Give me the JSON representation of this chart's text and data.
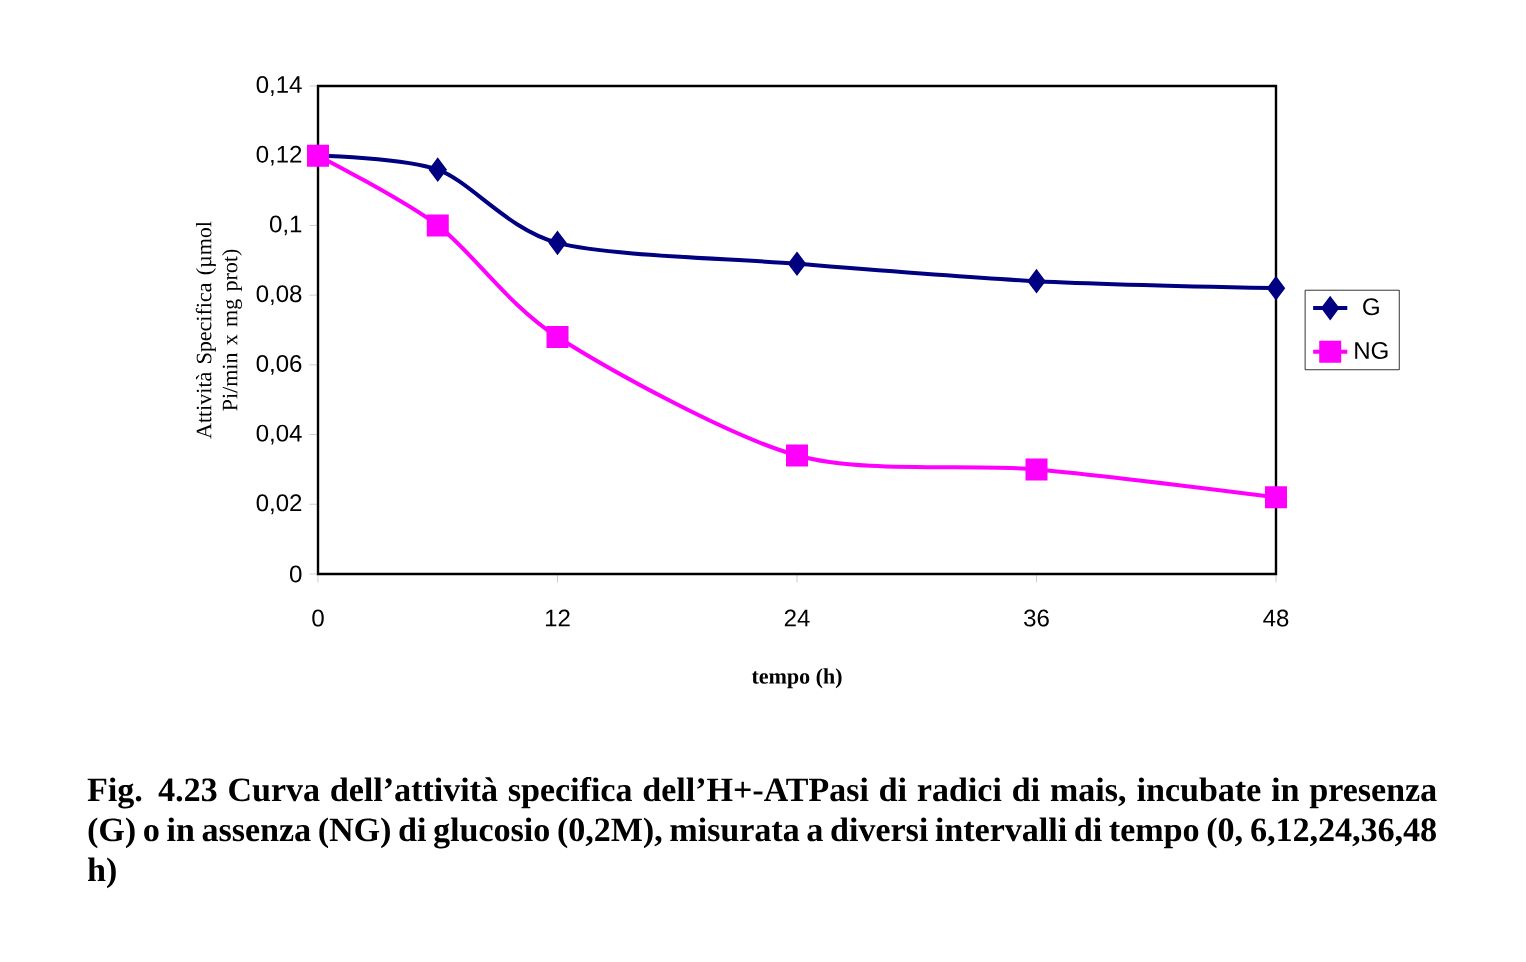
{
  "chart_data": {
    "type": "line",
    "xlabel": "tempo (h)",
    "ylabel": "Attività Specifica (µmol Pi/min x mg prot)",
    "x": [
      0,
      6,
      12,
      24,
      36,
      48
    ],
    "series": [
      {
        "name": "G",
        "color": "#000080",
        "marker": "diamond",
        "values": [
          0.12,
          0.116,
          0.095,
          0.089,
          0.084,
          0.082
        ]
      },
      {
        "name": "NG",
        "color": "#ff00ff",
        "marker": "square",
        "values": [
          0.12,
          0.1,
          0.068,
          0.034,
          0.03,
          0.022
        ]
      }
    ],
    "xlim": [
      0,
      48
    ],
    "xticks": [
      0,
      12,
      24,
      36,
      48
    ],
    "ylim": [
      0,
      0.14
    ],
    "yticks": [
      0,
      {
        "value": 0.02,
        "label": "0,02"
      },
      {
        "value": 0.04,
        "label": "0,04"
      },
      {
        "value": 0.06,
        "label": "0,06"
      },
      {
        "value": 0.08,
        "label": "0,08"
      },
      {
        "value": 0.1,
        "label": "0,1"
      },
      {
        "value": 0.12,
        "label": "0,12"
      },
      {
        "value": 0.14,
        "label": "0,14"
      }
    ],
    "line_style": "solid",
    "legend": "right",
    "annotations": [
      "Fig. 4.23 Curva dell’attività specifica dell’H+-ATPasi di radici di mais, incubate in presenza (G) o in assenza (NG) di glucosio (0,2M), misurata a diversi intervalli di tempo (0, 6,12,24,36,48 h)"
    ]
  }
}
